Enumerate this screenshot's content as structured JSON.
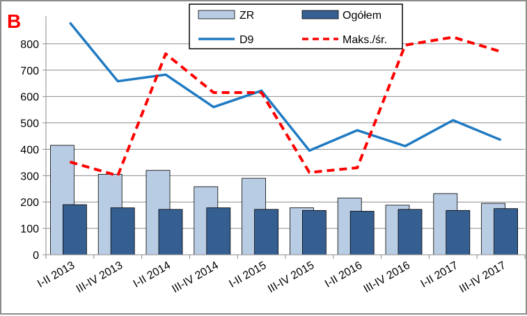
{
  "chart_data": {
    "type": "bar",
    "panel_label": "B",
    "categories": [
      "I-II 2013",
      "III-IV 2013",
      "I-II 2014",
      "III-IV 2014",
      "I-II 2015",
      "III-IV 2015",
      "I-II 2016",
      "III-IV 2016",
      "I-II 2017",
      "III-IV 2017"
    ],
    "ylim": [
      0,
      900
    ],
    "yticks": [
      "0",
      "100",
      "200",
      "300",
      "400",
      "500",
      "600",
      "700",
      "800"
    ],
    "grid": true,
    "legend_position": "top-center",
    "series": [
      {
        "name": "ZR",
        "kind": "bar",
        "color": "#b8cce4",
        "values": [
          415,
          305,
          320,
          258,
          290,
          178,
          215,
          188,
          232,
          195
        ]
      },
      {
        "name": "Ogółem",
        "kind": "bar",
        "color": "#365f91",
        "values": [
          190,
          178,
          172,
          178,
          172,
          168,
          165,
          172,
          168,
          175
        ]
      },
      {
        "name": "D9",
        "kind": "line",
        "color": "#1f7ac2",
        "style": "solid",
        "values": [
          880,
          658,
          683,
          560,
          622,
          395,
          472,
          412,
          510,
          435
        ]
      },
      {
        "name": "Maks./śr.",
        "kind": "line",
        "color": "#ff0000",
        "style": "dashed",
        "values": [
          352,
          300,
          762,
          615,
          615,
          312,
          330,
          795,
          825,
          770
        ]
      }
    ]
  }
}
